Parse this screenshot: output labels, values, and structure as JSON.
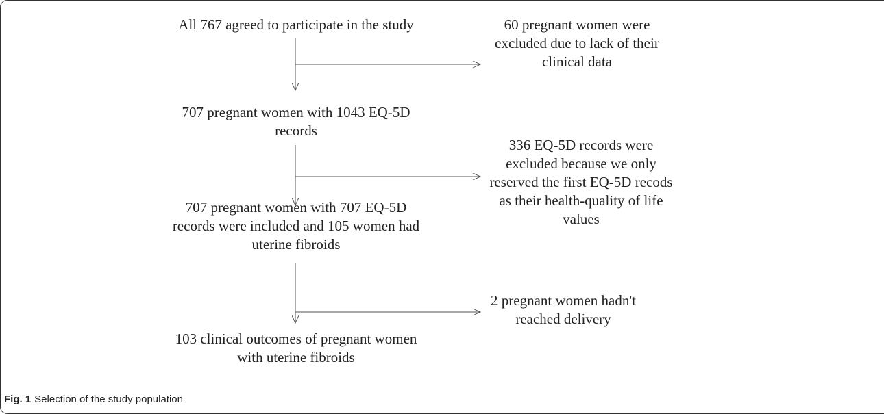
{
  "nodes": [
    {
      "lines": [
        "All 767 agreed to participate in the study"
      ]
    },
    {
      "lines": [
        "707 pregnant women with 1043 EQ-5D",
        "records"
      ]
    },
    {
      "lines": [
        "707 pregnant women with 707 EQ-5D",
        "records were included and 105 women had",
        "uterine fibroids"
      ]
    },
    {
      "lines": [
        "103 clinical outcomes of pregnant women",
        "with uterine fibroids"
      ]
    }
  ],
  "exclusions": [
    {
      "lines": [
        "60 pregnant women were",
        "excluded due to lack of their",
        "clinical data"
      ]
    },
    {
      "lines": [
        "336 EQ-5D records were",
        "excluded because we only",
        "reserved the first EQ-5D recods",
        "as their health-quality of life",
        "values"
      ]
    },
    {
      "lines": [
        "2 pregnant women hadn't",
        "reached delivery"
      ]
    }
  ],
  "caption": {
    "label": "Fig. 1",
    "text": "Selection of the study population"
  }
}
